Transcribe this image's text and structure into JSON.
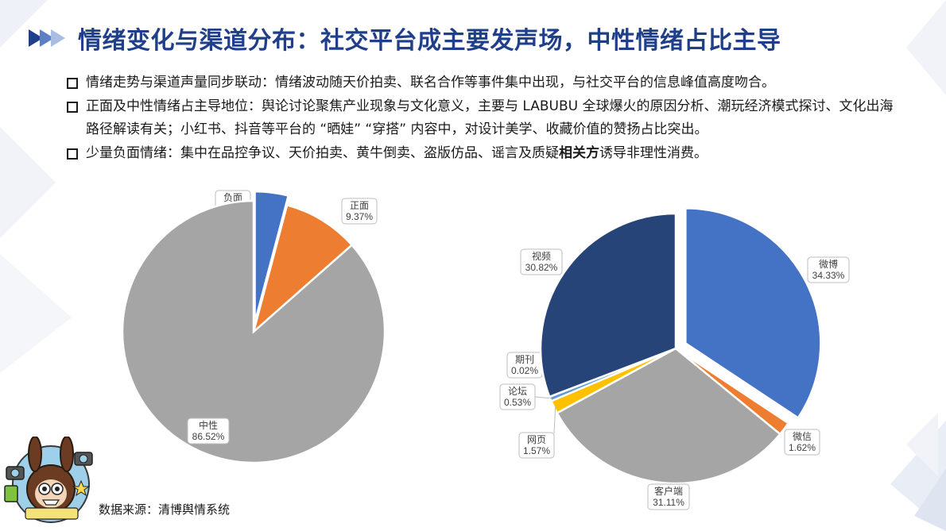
{
  "title": "情绪变化与渠道分布：社交平台成主要发声场，中性情绪占比主导",
  "bullets": [
    {
      "text": "情绪走势与渠道声量同步联动：情绪波动随天价拍卖、联名合作等事件集中出现，与社交平台的信息峰值高度吻合。"
    },
    {
      "text": "正面及中性情绪占主导地位：舆论讨论聚焦产业现象与文化意义，主要与 LABUBU 全球爆火的原因分析、潮玩经济模式探讨、文化出海路径解读有关；小红书、抖音等平台的 “晒娃” “穿搭” 内容中，对设计美学、收藏价值的赞扬占比突出。"
    },
    {
      "before": "少量负面情绪：集中在品控争议、天价拍卖、黄牛倒卖、盗版仿品、谣言及质疑",
      "bold": "相关方",
      "after": "诱导非理性消费。"
    }
  ],
  "source": "数据来源：清博舆情系统",
  "colors": {
    "title": "#1f3f8a",
    "blue": "#4472c4",
    "orange": "#ed7d31",
    "gray": "#a5a5a5",
    "yellow": "#ffc000",
    "green": "#70ad47",
    "navy": "#264478"
  },
  "chart_data": [
    {
      "type": "pie",
      "title": "",
      "slices": [
        {
          "label": "负面",
          "value": 4.11,
          "display": "4.11%",
          "color": "#4472c4",
          "exploded": true
        },
        {
          "label": "正面",
          "value": 9.37,
          "display": "9.37%",
          "color": "#ed7d31",
          "exploded": false
        },
        {
          "label": "中性",
          "value": 86.52,
          "display": "86.52%",
          "color": "#a5a5a5",
          "exploded": false
        }
      ]
    },
    {
      "type": "pie",
      "title": "",
      "slices": [
        {
          "label": "微博",
          "value": 34.33,
          "display": "34.33%",
          "color": "#4472c4",
          "exploded": true
        },
        {
          "label": "微信",
          "value": 1.62,
          "display": "1.62%",
          "color": "#ed7d31",
          "exploded": false
        },
        {
          "label": "客户端",
          "value": 31.11,
          "display": "31.11%",
          "color": "#a5a5a5",
          "exploded": false
        },
        {
          "label": "网页",
          "value": 1.57,
          "display": "1.57%",
          "color": "#ffc000",
          "exploded": false
        },
        {
          "label": "论坛",
          "value": 0.53,
          "display": "0.53%",
          "color": "#5b9bd5",
          "exploded": false
        },
        {
          "label": "期刊",
          "value": 0.02,
          "display": "0.02%",
          "color": "#70ad47",
          "exploded": false
        },
        {
          "label": "视频",
          "value": 30.82,
          "display": "30.82%",
          "color": "#264478",
          "exploded": false
        }
      ]
    }
  ]
}
